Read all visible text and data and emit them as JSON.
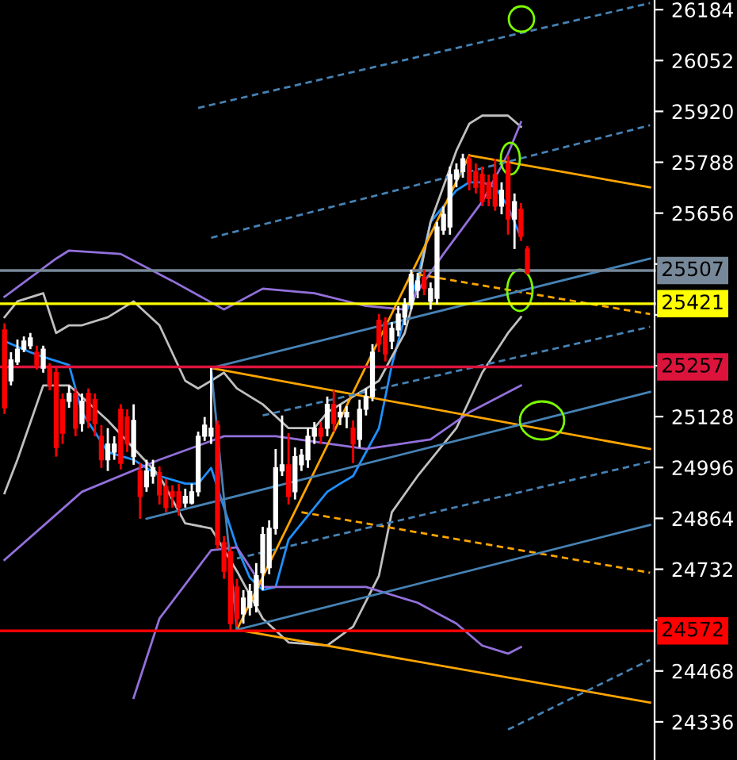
{
  "chart_data": [
    {
      "type": "candlestick",
      "categories": [
        null,
        null,
        null,
        null,
        null,
        null,
        null,
        null,
        null,
        null,
        null,
        null,
        null,
        null,
        null,
        null,
        null,
        null,
        null,
        null,
        null,
        null,
        null,
        null,
        null,
        null,
        null,
        null,
        null,
        null,
        null,
        null,
        null,
        null,
        null,
        null,
        null,
        null,
        null,
        null,
        null,
        null,
        null,
        null,
        null,
        null,
        null,
        null,
        null,
        null,
        null,
        null,
        null,
        null,
        null,
        null,
        null,
        null,
        null,
        null,
        null,
        null,
        null,
        null,
        null,
        null,
        null,
        null,
        null,
        null,
        null,
        null,
        null,
        null,
        null,
        null,
        null,
        null,
        null,
        null,
        null,
        null,
        null,
        null,
        null,
        null,
        null,
        null,
        null,
        null,
        null,
        null,
        null,
        null,
        null,
        null,
        null,
        null,
        null,
        null,
        null
      ],
      "ohlc": [
        [
          25353,
          25370,
          25135,
          25151
        ],
        [
          25221,
          25295,
          25209,
          25275
        ],
        [
          25270,
          25328,
          25262,
          25303
        ],
        [
          25303,
          25336,
          25295,
          25324
        ],
        [
          25312,
          25345,
          25303,
          25332
        ],
        [
          25295,
          25312,
          25250,
          25262
        ],
        [
          25254,
          25312,
          25242,
          25303
        ],
        [
          25254,
          25266,
          25196,
          25209
        ],
        [
          25242,
          25254,
          25024,
          25048
        ],
        [
          25172,
          25188,
          25057,
          25085
        ],
        [
          25168,
          25209,
          25151,
          25188
        ],
        [
          25188,
          25201,
          25077,
          25098
        ],
        [
          25110,
          25188,
          25089,
          25168
        ],
        [
          25188,
          25201,
          25098,
          25118
        ],
        [
          25172,
          25188,
          25077,
          25110
        ],
        [
          25077,
          25106,
          24995,
          25016
        ],
        [
          25016,
          25098,
          24987,
          25057
        ],
        [
          25036,
          25077,
          25016,
          25057
        ],
        [
          25147,
          25160,
          24991,
          25007
        ],
        [
          25127,
          25147,
          25036,
          25057
        ],
        [
          25024,
          25160,
          25003,
          25118
        ],
        [
          24987,
          25007,
          24863,
          24921
        ],
        [
          24946,
          25016,
          24933,
          24987
        ],
        [
          24974,
          25016,
          24954,
          24995
        ],
        [
          24983,
          24999,
          24900,
          24925
        ],
        [
          24946,
          24966,
          24880,
          24892
        ],
        [
          24933,
          24950,
          24892,
          24921
        ],
        [
          24933,
          24954,
          24871,
          24892
        ],
        [
          24904,
          24941,
          24892,
          24921
        ],
        [
          24904,
          24954,
          24900,
          24933
        ],
        [
          24933,
          25089,
          24921,
          25077
        ],
        [
          25077,
          25127,
          25065,
          25106
        ],
        [
          25077,
          25254,
          25057,
          25098
        ],
        [
          25106,
          25118,
          24785,
          24796
        ],
        [
          24801,
          24818,
          24707,
          24727
        ],
        [
          24777,
          24789,
          24572,
          24591
        ],
        [
          24686,
          24707,
          24583,
          24604
        ],
        [
          24616,
          24678,
          24591,
          24657
        ],
        [
          24633,
          24694,
          24612,
          24674
        ],
        [
          24637,
          24748,
          24620,
          24715
        ],
        [
          24723,
          24842,
          24678,
          24822
        ],
        [
          24736,
          24859,
          24719,
          24838
        ],
        [
          24838,
          25044,
          24822,
          24995
        ],
        [
          24987,
          25131,
          24974,
          25003
        ],
        [
          25003,
          25085,
          24900,
          24921
        ],
        [
          24933,
          25048,
          24913,
          25024
        ],
        [
          25003,
          25044,
          24987,
          25028
        ],
        [
          25016,
          25098,
          24995,
          25077
        ],
        [
          25077,
          25114,
          25057,
          25098
        ],
        [
          25098,
          25114,
          25057,
          25077
        ],
        [
          25098,
          25180,
          25077,
          25160
        ],
        [
          25160,
          25196,
          25089,
          25110
        ],
        [
          25127,
          25160,
          25106,
          25139
        ],
        [
          25127,
          25155,
          25098,
          25139
        ],
        [
          25098,
          25118,
          25007,
          25057
        ],
        [
          25069,
          25172,
          25048,
          25147
        ],
        [
          25147,
          25201,
          25131,
          25180
        ],
        [
          25180,
          25316,
          25168,
          25295
        ],
        [
          25378,
          25394,
          25295,
          25316
        ],
        [
          25373,
          25386,
          25271,
          25291
        ],
        [
          25324,
          25373,
          25303,
          25357
        ],
        [
          25353,
          25415,
          25336,
          25394
        ],
        [
          25386,
          25435,
          25365,
          25419
        ],
        [
          25419,
          25509,
          25406,
          25497
        ],
        [
          25456,
          25501,
          25435,
          25480
        ],
        [
          25489,
          25509,
          25443,
          25460
        ],
        [
          25427,
          25476,
          25406,
          25460
        ],
        [
          25435,
          25633,
          25419,
          25620
        ],
        [
          25612,
          25673,
          25600,
          25653
        ],
        [
          25620,
          25777,
          25600,
          25756
        ],
        [
          25744,
          25785,
          25723,
          25768
        ],
        [
          25764,
          25810,
          25748,
          25797
        ],
        [
          25797,
          25805,
          25715,
          25736
        ],
        [
          25764,
          25785,
          25707,
          25723
        ],
        [
          25756,
          25777,
          25674,
          25686
        ],
        [
          25736,
          25756,
          25674,
          25694
        ],
        [
          25756,
          25797,
          25662,
          25674
        ],
        [
          25674,
          25736,
          25653,
          25715
        ],
        [
          25785,
          25805,
          25600,
          25641
        ],
        [
          25641,
          25707,
          25563,
          25686
        ],
        [
          25666,
          25682,
          25584,
          25596
        ],
        [
          25563,
          25571,
          25497,
          25501
        ],
        null,
        null,
        null,
        null,
        null,
        null,
        null,
        null,
        null,
        null,
        null,
        null,
        null,
        null,
        null,
        null,
        null,
        null,
        null
      ],
      "colors": [
        "#ff0000",
        "#ffffff",
        "#ffffff",
        "#ffffff",
        "#ffffff",
        "#ff0000",
        "#ffffff",
        "#ff0000",
        "#ff0000",
        "#ff0000",
        "#ffffff",
        "#ff0000",
        "#ffffff",
        "#ff0000",
        "#ff0000",
        "#ff0000",
        "#ffffff",
        "#ffffff",
        "#ff0000",
        "#ff0000",
        "#ffffff",
        "#ff0000",
        "#ffffff",
        "#ffffff",
        "#ff0000",
        "#ff0000",
        "#ff0000",
        "#ff0000",
        "#ffffff",
        "#ffffff",
        "#ffffff",
        "#ffffff",
        "#ffffff",
        "#ff0000",
        "#ff0000",
        "#ff0000",
        "#ff0000",
        "#ffffff",
        "#ffffff",
        "#ffffff",
        "#ffffff",
        "#ffffff",
        "#ffffff",
        "#ffffff",
        "#ff0000",
        "#ffffff",
        "#ffffff",
        "#ffffff",
        "#ffffff",
        "#ff0000",
        "#ffffff",
        "#ff0000",
        "#ffffff",
        "#ffffff",
        "#ff0000",
        "#ffffff",
        "#ffffff",
        "#ffffff",
        "#ff0000",
        "#ff0000",
        "#ffffff",
        "#ffffff",
        "#ffffff",
        "#ffffff",
        "#ffffff",
        "#ff0000",
        "#ffffff",
        "#ffffff",
        "#ffffff",
        "#ffffff",
        "#ffffff",
        "#ffffff",
        "#ff0000",
        "#ff0000",
        "#ff0000",
        "#ff0000",
        "#ff0000",
        "#ffffff",
        "#ff0000",
        "#ffffff",
        "#ff0000",
        "#ff0000",
        null,
        null,
        null,
        null,
        null,
        null,
        null,
        null,
        null,
        null,
        null,
        null,
        null,
        null,
        null,
        null,
        null,
        null,
        null
      ],
      "ref_lines": [
        {
          "axis": "y",
          "value": 25507,
          "label": "25507",
          "color": "#778899"
        },
        {
          "axis": "y",
          "value": 25421,
          "label": "25421",
          "color": "#ffff00"
        },
        {
          "axis": "y",
          "value": 25257,
          "label": "25257",
          "color": "#dc143c"
        },
        {
          "axis": "y",
          "value": 24572,
          "label": "24572",
          "color": "#ff0000"
        }
      ],
      "ylim": [
        24237,
        26209
      ],
      "yticks": [
        24336,
        24468,
        {
          "value": 24600,
          "label": null
        },
        24732,
        24864,
        24996,
        25128,
        {
          "value": 25260,
          "label": null
        },
        {
          "value": 25392,
          "label": null
        },
        {
          "value": 25524,
          "label": null
        },
        25656,
        25788,
        25920,
        26052,
        26184
      ]
    },
    {
      "type": "line",
      "categories": [
        null,
        null,
        null,
        null,
        null,
        null,
        null,
        null,
        null,
        null,
        null,
        null,
        null,
        null,
        null,
        null,
        null,
        null,
        null,
        null,
        null,
        null,
        null,
        null,
        null,
        null,
        null,
        null,
        null,
        null,
        null,
        null,
        null,
        null,
        null,
        null,
        null,
        null,
        null,
        null,
        null,
        null,
        null,
        null,
        null,
        null,
        null,
        null,
        null,
        null,
        null
      ],
      "ylim": [
        24237,
        26209
      ],
      "tick_labels": false,
      "series": [
        {
          "color": "#1e90ff",
          "values": [
            25324,
            null,
            25295,
            25283,
            null,
            25262,
            25139,
            null,
            25036,
            null,
            25016,
            null,
            24974,
            null,
            24954,
            24954,
            24995,
            24892,
            24789,
            24710,
            24678,
            24686,
            24809,
            null,
            24892,
            24933,
            24954,
            24974,
            null,
            25098,
            25262,
            25386,
            25489,
            25633,
            null,
            25715,
            25736,
            25736,
            25723,
            25673,
            25592,
            null,
            null,
            null,
            null,
            null,
            null,
            null,
            null,
            null,
            null
          ]
        },
        {
          "color": "#c0c0c0",
          "values": [
            25386,
            25427,
            null,
            25448,
            25345,
            25365,
            25365,
            null,
            25386,
            null,
            25427,
            null,
            25365,
            null,
            25221,
            25201,
            25221,
            25242,
            25201,
            null,
            25160,
            null,
            25098,
            null,
            25098,
            25139,
            null,
            25180,
            null,
            25221,
            null,
            25345,
            25468,
            25633,
            null,
            25818,
            25888,
            25909,
            null,
            25909,
            25880,
            null,
            null,
            null,
            null,
            null,
            null,
            null,
            null,
            null,
            null
          ]
        },
        {
          "color": "#c0c0c0",
          "values": [
            24929,
            25016,
            null,
            25209,
            null,
            25209,
            null,
            null,
            25118,
            null,
            null,
            null,
            24974,
            null,
            24851,
            null,
            24838,
            null,
            24727,
            null,
            24604,
            null,
            24542,
            null,
            null,
            24534,
            null,
            24583,
            null,
            24715,
            24880,
            null,
            24974,
            null,
            null,
            25098,
            null,
            25242,
            null,
            25345,
            25386,
            null,
            null,
            null,
            null,
            null,
            null,
            null,
            null,
            null,
            null
          ]
        },
        {
          "color": "#9370db",
          "values": [
            25439,
            null,
            null,
            null,
            25538,
            25559,
            null,
            null,
            null,
            25550,
            null,
            null,
            null,
            25480,
            null,
            null,
            null,
            25406,
            null,
            null,
            25460,
            null,
            null,
            null,
            25448,
            null,
            null,
            null,
            25415,
            null,
            null,
            25406,
            null,
            null,
            25550,
            null,
            null,
            25686,
            null,
            25810,
            25892,
            null,
            null,
            null,
            null,
            null,
            null,
            null,
            null,
            null,
            null
          ]
        },
        {
          "color": "#9370db",
          "values": [
            24756,
            null,
            null,
            null,
            null,
            null,
            24933,
            null,
            null,
            null,
            null,
            null,
            25016,
            null,
            null,
            null,
            null,
            25077,
            null,
            null,
            null,
            25077,
            null,
            null,
            null,
            null,
            null,
            null,
            25044,
            null,
            null,
            null,
            null,
            25069,
            null,
            null,
            25139,
            null,
            null,
            null,
            25209,
            null,
            null,
            null,
            null,
            null,
            null,
            null,
            null,
            null,
            null
          ]
        },
        {
          "color": "#9370db",
          "values": [
            null,
            null,
            null,
            null,
            null,
            null,
            null,
            null,
            null,
            null,
            24398,
            null,
            24604,
            null,
            null,
            null,
            24781,
            null,
            24789,
            null,
            24686,
            null,
            null,
            null,
            null,
            null,
            null,
            null,
            24686,
            null,
            null,
            null,
            24645,
            null,
            null,
            24591,
            null,
            24534,
            null,
            24513,
            24530,
            null,
            null,
            null,
            null,
            null,
            null,
            null,
            null,
            null,
            null
          ]
        },
        {
          "color": "#ffa500",
          "values": [
            null,
            null,
            null,
            null,
            null,
            null,
            null,
            null,
            null,
            null,
            null,
            null,
            null,
            null,
            null,
            null,
            null,
            null,
            null,
            null,
            null,
            null,
            null,
            null,
            null,
            null,
            null,
            null,
            null,
            null,
            null,
            null,
            null,
            null,
            null,
            null,
            25806,
            null,
            null,
            null,
            null,
            null,
            null,
            null,
            null,
            null,
            null,
            null,
            null,
            null,
            25723
          ]
        },
        {
          "color": "#ffa500",
          "values": [
            null,
            null,
            null,
            null,
            null,
            null,
            null,
            null,
            null,
            null,
            null,
            null,
            null,
            null,
            null,
            null,
            null,
            null,
            24575,
            null,
            null,
            null,
            null,
            null,
            null,
            null,
            null,
            null,
            null,
            null,
            null,
            null,
            null,
            null,
            null,
            null,
            25806,
            null,
            null,
            null,
            null,
            null,
            null,
            null,
            null,
            null,
            null,
            null,
            null,
            null,
            null
          ]
        },
        {
          "color": "#ffa500",
          "values": [
            null,
            null,
            null,
            null,
            null,
            null,
            null,
            null,
            null,
            null,
            null,
            null,
            null,
            null,
            null,
            null,
            25254,
            null,
            null,
            null,
            null,
            null,
            null,
            null,
            null,
            null,
            null,
            null,
            null,
            null,
            null,
            null,
            null,
            null,
            null,
            null,
            null,
            null,
            null,
            null,
            null,
            null,
            null,
            null,
            null,
            null,
            null,
            null,
            null,
            null,
            25044
          ]
        },
        {
          "color": "#ffa500",
          "line_style": "dashed",
          "values": [
            null,
            null,
            null,
            null,
            null,
            null,
            null,
            null,
            null,
            null,
            null,
            null,
            null,
            null,
            null,
            null,
            null,
            null,
            null,
            null,
            null,
            null,
            null,
            null,
            null,
            null,
            null,
            null,
            null,
            null,
            null,
            null,
            25497,
            null,
            null,
            null,
            null,
            null,
            null,
            null,
            null,
            null,
            null,
            null,
            null,
            null,
            null,
            null,
            null,
            null,
            25394
          ]
        },
        {
          "color": "#ffa500",
          "line_style": "dashed",
          "values": [
            null,
            null,
            null,
            null,
            null,
            null,
            null,
            null,
            null,
            null,
            null,
            null,
            null,
            null,
            null,
            null,
            null,
            null,
            null,
            null,
            null,
            null,
            null,
            24880,
            null,
            null,
            null,
            null,
            null,
            null,
            null,
            null,
            null,
            null,
            null,
            null,
            null,
            null,
            null,
            null,
            null,
            null,
            null,
            null,
            null,
            null,
            null,
            null,
            null,
            null,
            24723
          ]
        },
        {
          "color": "#ffa500",
          "values": [
            null,
            null,
            null,
            null,
            null,
            null,
            null,
            null,
            null,
            null,
            null,
            null,
            null,
            null,
            null,
            null,
            null,
            null,
            24575,
            null,
            null,
            null,
            null,
            null,
            null,
            null,
            null,
            null,
            null,
            null,
            null,
            null,
            null,
            null,
            null,
            null,
            null,
            null,
            null,
            null,
            null,
            null,
            null,
            null,
            null,
            null,
            null,
            null,
            null,
            null,
            24386
          ]
        },
        {
          "color": "#4682b4",
          "values": [
            null,
            null,
            null,
            null,
            null,
            null,
            null,
            null,
            null,
            null,
            null,
            null,
            null,
            null,
            null,
            null,
            25254,
            null,
            24575,
            null,
            null,
            null,
            null,
            null,
            null,
            null,
            null,
            null,
            null,
            null,
            null,
            null,
            null,
            null,
            null,
            null,
            null,
            null,
            null,
            null,
            null,
            null,
            null,
            null,
            null,
            null,
            null,
            null,
            null,
            null,
            null
          ]
        },
        {
          "color": "#4682b4",
          "values": [
            null,
            null,
            null,
            null,
            null,
            null,
            null,
            null,
            null,
            null,
            null,
            null,
            null,
            null,
            null,
            null,
            25254,
            null,
            null,
            null,
            null,
            null,
            null,
            null,
            null,
            null,
            null,
            null,
            null,
            null,
            null,
            null,
            null,
            null,
            null,
            null,
            null,
            null,
            null,
            null,
            null,
            null,
            null,
            null,
            null,
            null,
            null,
            null,
            null,
            null,
            25538
          ]
        },
        {
          "color": "#4682b4",
          "values": [
            null,
            null,
            null,
            null,
            null,
            null,
            null,
            null,
            null,
            null,
            null,
            24863,
            null,
            null,
            null,
            null,
            null,
            null,
            null,
            null,
            null,
            null,
            null,
            null,
            null,
            null,
            null,
            null,
            null,
            null,
            null,
            null,
            null,
            null,
            null,
            null,
            null,
            null,
            null,
            null,
            null,
            null,
            null,
            null,
            null,
            null,
            null,
            null,
            null,
            null,
            25192
          ]
        },
        {
          "color": "#4682b4",
          "values": [
            null,
            null,
            null,
            null,
            null,
            null,
            null,
            null,
            null,
            null,
            null,
            null,
            null,
            null,
            null,
            null,
            null,
            null,
            24575,
            null,
            null,
            null,
            null,
            null,
            null,
            null,
            null,
            null,
            null,
            null,
            null,
            null,
            null,
            null,
            null,
            null,
            null,
            null,
            null,
            null,
            null,
            null,
            null,
            null,
            null,
            null,
            null,
            null,
            null,
            null,
            24847
          ]
        },
        {
          "color": "#4682b4",
          "line_style": "dashed",
          "values": [
            null,
            null,
            null,
            null,
            null,
            null,
            null,
            null,
            null,
            null,
            null,
            null,
            null,
            null,
            null,
            25929,
            null,
            null,
            null,
            null,
            null,
            null,
            null,
            null,
            null,
            null,
            null,
            null,
            null,
            null,
            null,
            null,
            null,
            null,
            null,
            null,
            null,
            null,
            null,
            null,
            null,
            null,
            null,
            null,
            null,
            null,
            null,
            null,
            null,
            null,
            26201
          ]
        },
        {
          "color": "#4682b4",
          "line_style": "dashed",
          "values": [
            null,
            null,
            null,
            null,
            null,
            null,
            null,
            null,
            null,
            null,
            null,
            null,
            null,
            null,
            null,
            null,
            25592,
            null,
            null,
            null,
            null,
            null,
            null,
            null,
            null,
            null,
            null,
            null,
            null,
            null,
            null,
            null,
            null,
            null,
            null,
            null,
            null,
            null,
            null,
            null,
            null,
            null,
            null,
            null,
            null,
            null,
            null,
            null,
            null,
            null,
            25884
          ]
        },
        {
          "color": "#4682b4",
          "line_style": "dashed",
          "values": [
            null,
            null,
            null,
            null,
            null,
            null,
            null,
            null,
            null,
            null,
            null,
            null,
            null,
            null,
            null,
            null,
            null,
            null,
            null,
            null,
            25131,
            null,
            null,
            null,
            null,
            null,
            null,
            null,
            null,
            null,
            null,
            null,
            null,
            null,
            null,
            null,
            null,
            null,
            null,
            null,
            null,
            null,
            null,
            null,
            null,
            null,
            null,
            null,
            null,
            null,
            25361
          ]
        },
        {
          "color": "#4682b4",
          "line_style": "dashed",
          "values": [
            null,
            null,
            null,
            null,
            null,
            null,
            null,
            null,
            null,
            null,
            null,
            null,
            null,
            null,
            null,
            null,
            null,
            null,
            24760,
            null,
            null,
            null,
            null,
            null,
            null,
            null,
            null,
            null,
            null,
            null,
            null,
            null,
            null,
            null,
            null,
            null,
            null,
            null,
            null,
            null,
            null,
            null,
            null,
            null,
            null,
            null,
            null,
            null,
            null,
            null,
            25011
          ]
        },
        {
          "color": "#4682b4",
          "line_style": "dashed",
          "values": [
            null,
            null,
            null,
            null,
            null,
            null,
            null,
            null,
            null,
            null,
            null,
            null,
            null,
            null,
            null,
            null,
            null,
            null,
            null,
            null,
            null,
            null,
            null,
            null,
            null,
            null,
            null,
            null,
            null,
            null,
            null,
            null,
            null,
            null,
            null,
            null,
            null,
            null,
            null,
            24316,
            null,
            null,
            null,
            null,
            null,
            null,
            null,
            null,
            null,
            null,
            24497
          ]
        }
      ]
    }
  ]
}
